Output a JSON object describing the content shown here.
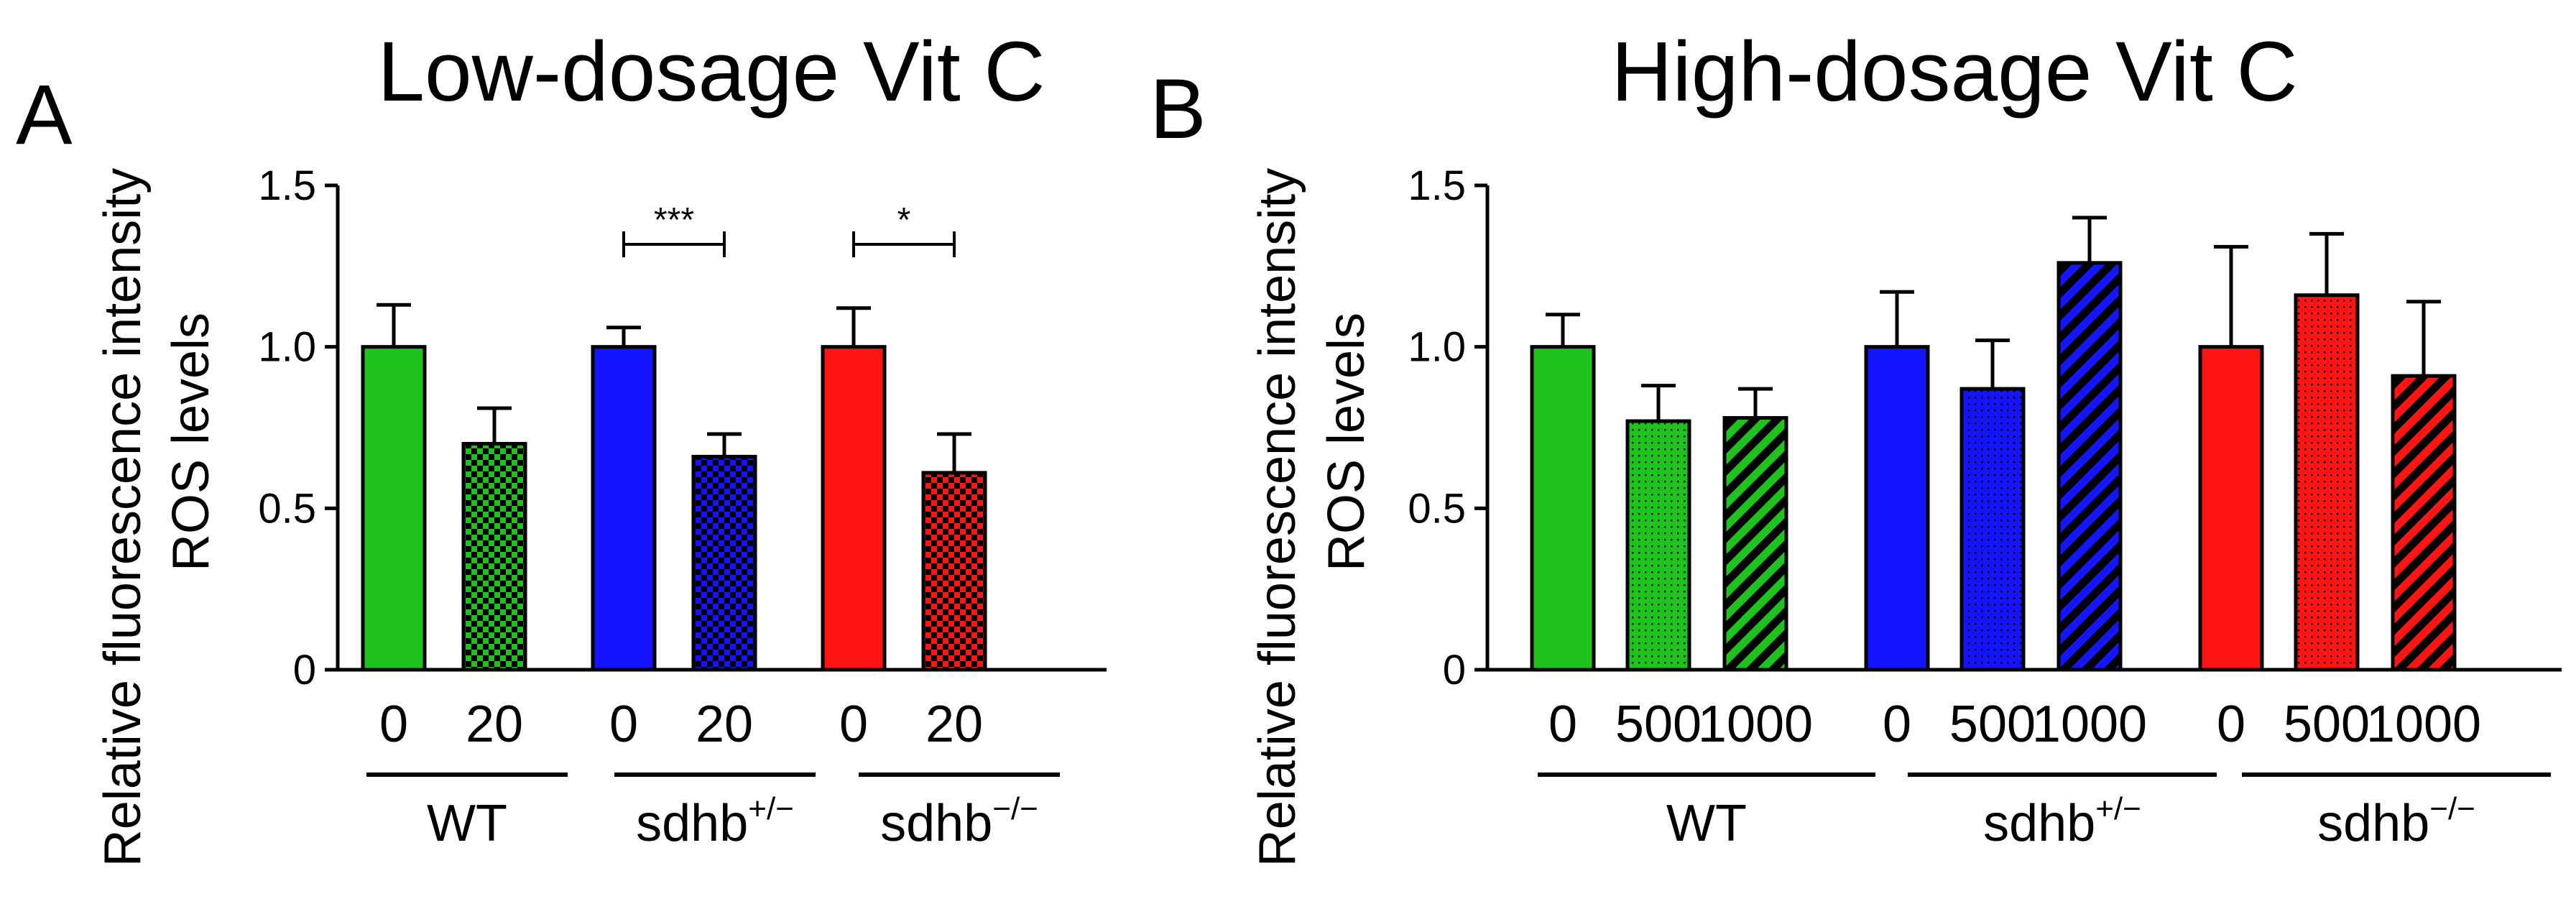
{
  "chart_data": [
    {
      "type": "bar",
      "panel_label": "A",
      "title": "Low-dosage Vit C",
      "ylabel_lines": [
        "Relative fluorescence intensity",
        "ROS levels"
      ],
      "ylim": [
        0,
        1.5
      ],
      "yticks": [
        "0",
        "0.5",
        "1.0",
        "1.5"
      ],
      "ytick_values": [
        0,
        0.5,
        1.0,
        1.5
      ],
      "groups": [
        {
          "label": "WT",
          "superscript": "",
          "color": "#1ec31e",
          "bars": [
            {
              "category": "0",
              "value": 1.0,
              "error": 0.13,
              "pattern": "solid"
            },
            {
              "category": "20",
              "value": 0.7,
              "error": 0.11,
              "pattern": "checker"
            }
          ],
          "significance": ""
        },
        {
          "label": "sdhb",
          "superscript": "+/−",
          "color": "#1414ff",
          "bars": [
            {
              "category": "0",
              "value": 1.0,
              "error": 0.06,
              "pattern": "solid"
            },
            {
              "category": "20",
              "value": 0.66,
              "error": 0.07,
              "pattern": "checker"
            }
          ],
          "significance": "***"
        },
        {
          "label": "sdhb",
          "superscript": "−/−",
          "color": "#ff1414",
          "bars": [
            {
              "category": "0",
              "value": 1.0,
              "error": 0.12,
              "pattern": "solid"
            },
            {
              "category": "20",
              "value": 0.61,
              "error": 0.12,
              "pattern": "checker"
            }
          ],
          "significance": "*"
        }
      ]
    },
    {
      "type": "bar",
      "panel_label": "B",
      "title": "High-dosage Vit C",
      "ylabel_lines": [
        "Relative fluorescence intensity",
        "ROS levels"
      ],
      "ylim": [
        0,
        1.5
      ],
      "yticks": [
        "0",
        "0.5",
        "1.0",
        "1.5"
      ],
      "ytick_values": [
        0,
        0.5,
        1.0,
        1.5
      ],
      "groups": [
        {
          "label": "WT",
          "superscript": "",
          "color": "#1ec31e",
          "bars": [
            {
              "category": "0",
              "value": 1.0,
              "error": 0.1,
              "pattern": "solid"
            },
            {
              "category": "500",
              "value": 0.77,
              "error": 0.11,
              "pattern": "dots"
            },
            {
              "category": "1000",
              "value": 0.78,
              "error": 0.09,
              "pattern": "stripes"
            }
          ]
        },
        {
          "label": "sdhb",
          "superscript": "+/−",
          "color": "#1414ff",
          "bars": [
            {
              "category": "0",
              "value": 1.0,
              "error": 0.17,
              "pattern": "solid"
            },
            {
              "category": "500",
              "value": 0.87,
              "error": 0.15,
              "pattern": "dots"
            },
            {
              "category": "1000",
              "value": 1.26,
              "error": 0.14,
              "pattern": "stripes"
            }
          ]
        },
        {
          "label": "sdhb",
          "superscript": "−/−",
          "color": "#ff1414",
          "bars": [
            {
              "category": "0",
              "value": 1.0,
              "error": 0.31,
              "pattern": "solid"
            },
            {
              "category": "500",
              "value": 1.16,
              "error": 0.19,
              "pattern": "dots"
            },
            {
              "category": "1000",
              "value": 0.91,
              "error": 0.23,
              "pattern": "stripes"
            }
          ]
        }
      ]
    }
  ]
}
